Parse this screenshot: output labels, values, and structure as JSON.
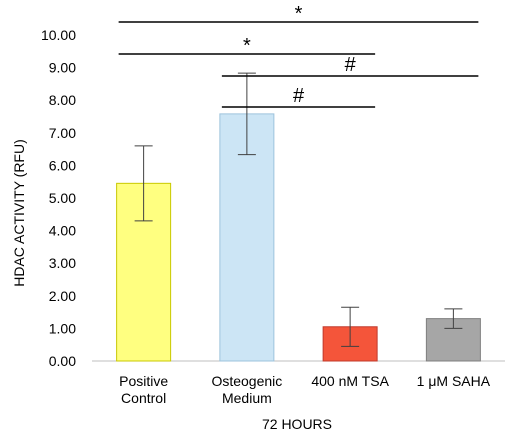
{
  "chart_data": {
    "type": "bar",
    "categories": [
      [
        "Positive",
        "Control"
      ],
      [
        "Osteogenic",
        "Medium"
      ],
      [
        "400 nM TSA"
      ],
      [
        "1 μM SAHA"
      ]
    ],
    "values": [
      5.45,
      7.58,
      1.05,
      1.3
    ],
    "errors": [
      1.15,
      1.25,
      0.6,
      0.3
    ],
    "colors": [
      "#FFFF80",
      "#CCE5F5",
      "#F4553A",
      "#A6A6A6"
    ],
    "edge_colors": [
      "#C8C800",
      "#9DC3DC",
      "#C0392B",
      "#7F7F7F"
    ],
    "ylabel": "HDAC ACTIVITY  (RFU)",
    "xlabel": "72 HOURS",
    "ylim": [
      0,
      10
    ],
    "yticks": [
      "0.00",
      "1.00",
      "2.00",
      "3.00",
      "4.00",
      "5.00",
      "6.00",
      "7.00",
      "8.00",
      "9.00",
      "10.00"
    ],
    "significance": [
      {
        "from": 0,
        "to": 3,
        "symbol": "*"
      },
      {
        "from": 0,
        "to": 2,
        "symbol": "*"
      },
      {
        "from": 1,
        "to": 3,
        "symbol": "#"
      },
      {
        "from": 1,
        "to": 2,
        "symbol": "#"
      }
    ],
    "grid": false,
    "legend": "none"
  }
}
